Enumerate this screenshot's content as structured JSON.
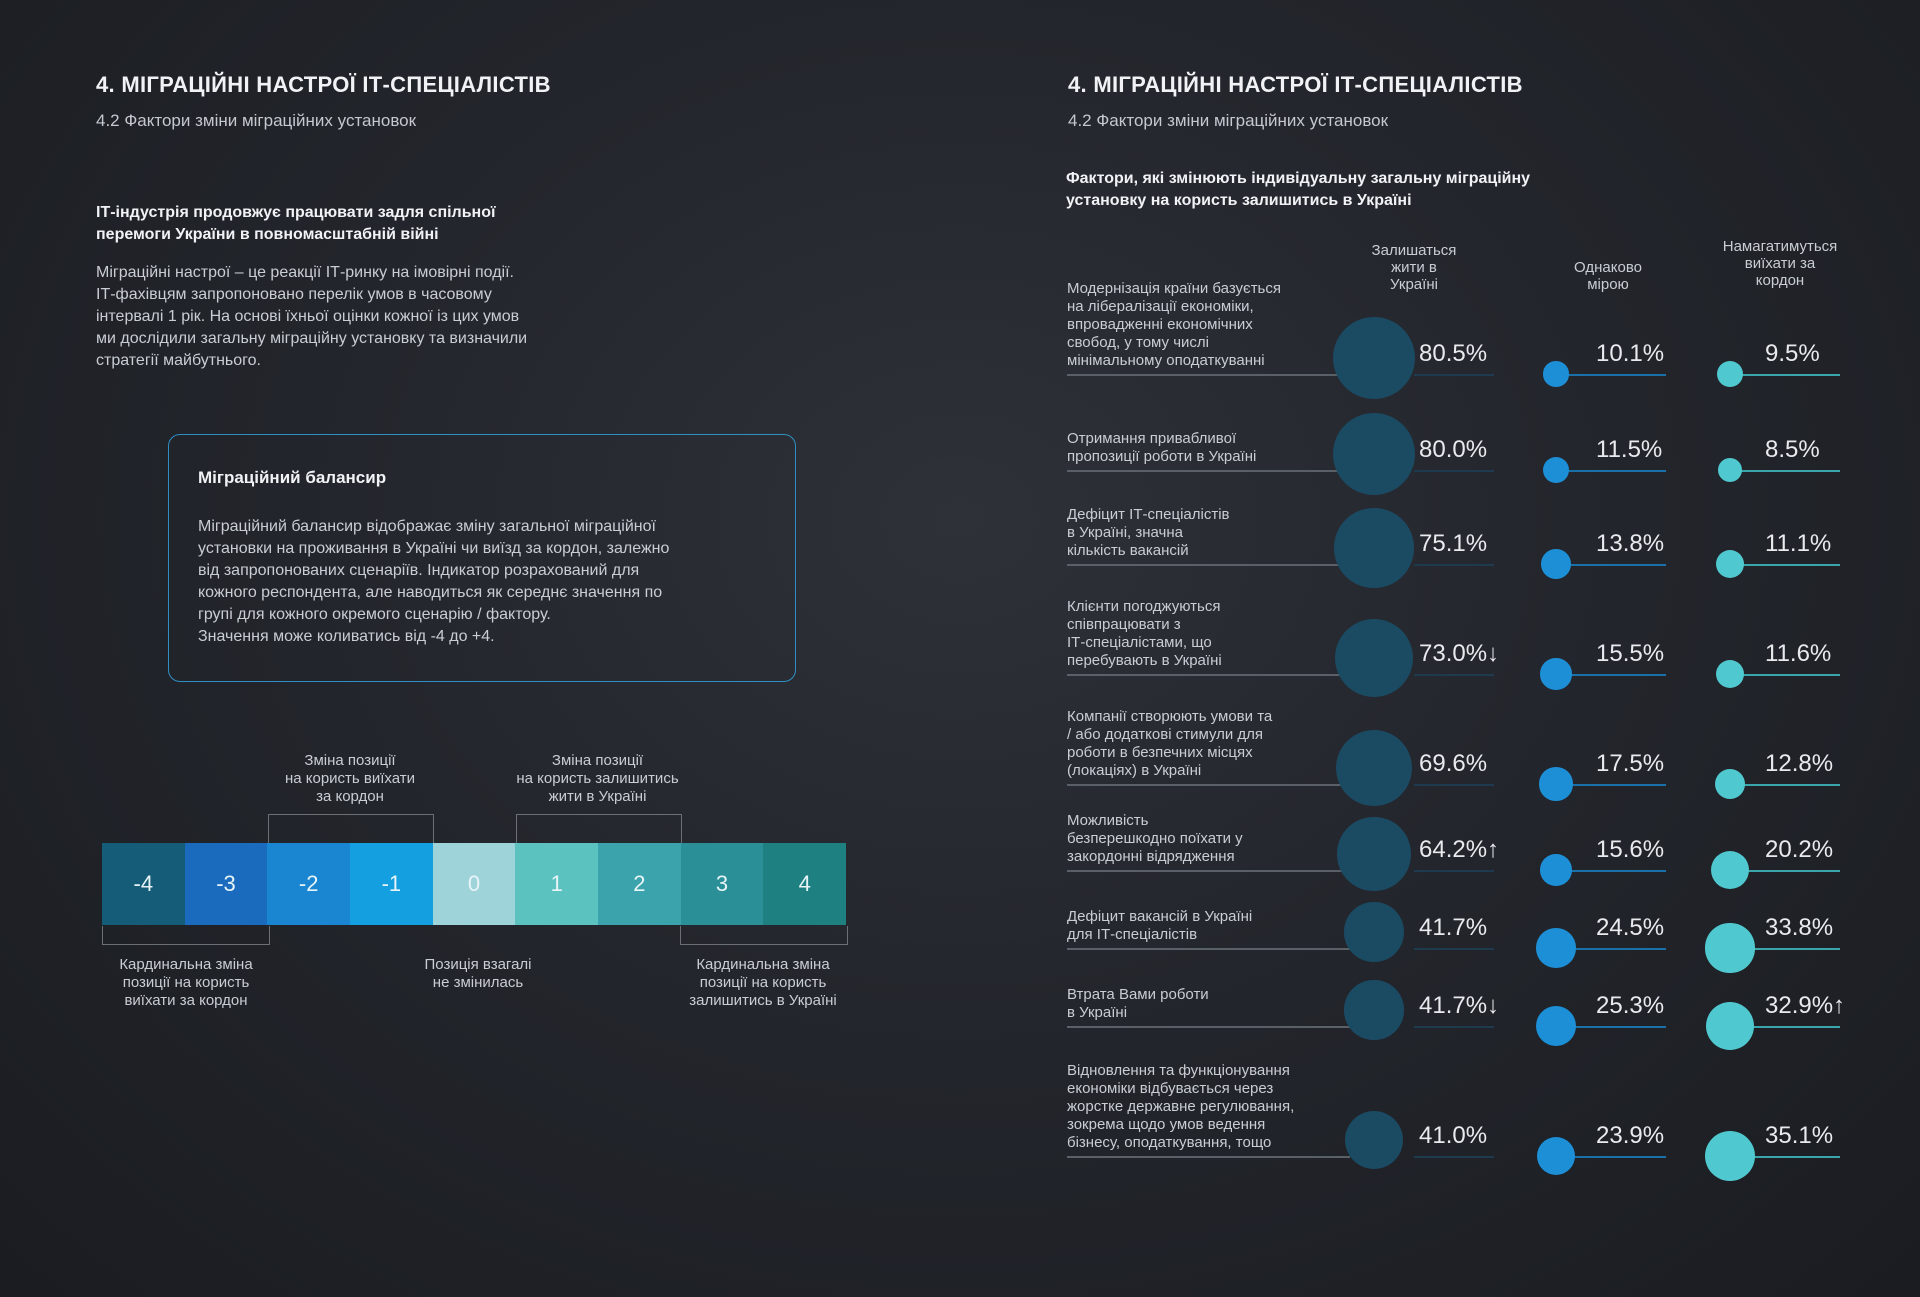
{
  "left": {
    "title": "4. МІГРАЦІЙНІ НАСТРОЇ ІТ-СПЕЦІАЛІСТІВ",
    "subtitle": "4.2 Фактори зміни міграційних установок",
    "lead_lines": [
      "ІТ-індустрія продовжує працювати задля спільної",
      "перемоги України в повномасштабній війні"
    ],
    "para_lines": [
      "Міграційні настрої – це реакції ІТ-ринку на імовірні події.",
      "ІТ-фахівцям запропоновано перелік умов в часовому",
      "інтервалі 1 рік. На основі їхньої оцінки кожної із цих умов",
      "ми дослідили загальну міграційну установку та визначили",
      "стратегії майбутнього."
    ],
    "box": {
      "title": "Міграційний балансир",
      "lines": [
        "Міграційний балансир відображає зміну загальної міграційної",
        "установки на проживання в Україні чи виїзд за кордон, залежно",
        "від запропонованих сценаріїв. Індикатор розрахований для",
        "кожного респондента, але наводиться як середнє значення по",
        "групі для кожного окремого сценарію / фактору.",
        "Значення може коливатись від -4 до +4."
      ]
    },
    "scale": {
      "cells": [
        "-4",
        "-3",
        "-2",
        "-1",
        "0",
        "1",
        "2",
        "3",
        "4"
      ],
      "colors": [
        "#145c78",
        "#1a6bbd",
        "#1a86d2",
        "#139fe0",
        "#9ed3d9",
        "#5cc2c0",
        "#3aa3ab",
        "#2a8f97",
        "#1f8082"
      ],
      "top_left_label": [
        "Зміна позиції",
        "на користь виїхати",
        "за кордон"
      ],
      "top_right_label": [
        "Зміна позиції",
        "на користь залишитись",
        "жити в Україні"
      ],
      "bottom_left_label": [
        "Кардинальна зміна",
        "позиції на користь",
        "виїхати за кордон"
      ],
      "bottom_center_label": [
        "Позиція взагалі",
        "не змінилась"
      ],
      "bottom_right_label": [
        "Кардинальна зміна",
        "позиції на користь",
        "залишитись в Україні"
      ]
    }
  },
  "right": {
    "title": "4. МІГРАЦІЙНІ НАСТРОЇ ІТ-СПЕЦІАЛІСТІВ",
    "subtitle": "4.2 Фактори зміни міграційних установок",
    "heading_lines": [
      "Фактори, які змінюють індивідуальну загальну міграційну",
      "установку на користь залишитись в Україні"
    ],
    "columns": [
      [
        "Залишаться",
        "жити в",
        "Україні"
      ],
      [
        "Однаково",
        "мірою"
      ],
      [
        "Намагатимуться",
        "виїхати за",
        "кордон"
      ]
    ],
    "colors": {
      "stay": "#1b4a63",
      "same": "#1d8fd6",
      "leave": "#4fc9cf"
    }
  },
  "chart_data": {
    "type": "table",
    "series": [
      {
        "name": "Залишаться жити в Україні",
        "values": [
          80.5,
          80.0,
          75.1,
          73.0,
          69.6,
          64.2,
          41.7,
          41.7,
          41.0
        ]
      },
      {
        "name": "Однаково мірою",
        "values": [
          10.1,
          11.5,
          13.8,
          15.5,
          17.5,
          15.6,
          24.5,
          25.3,
          23.9
        ]
      },
      {
        "name": "Намагатимуться виїхати за кордон",
        "values": [
          9.5,
          8.5,
          11.1,
          11.6,
          12.8,
          20.2,
          33.8,
          32.9,
          35.1
        ]
      }
    ],
    "rows": [
      {
        "label": [
          "Модернізація країни базується",
          "на лібералізації економіки,",
          "впровадженні економічних",
          "свобод, у тому числі",
          "мінімальному оподаткуванні"
        ],
        "stay": 80.5,
        "stay_text": "80.5%",
        "same": 10.1,
        "same_text": "10.1%",
        "leave": 9.5,
        "leave_text": "9.5%"
      },
      {
        "label": [
          "Отримання привабливої",
          "пропозиції роботи в Україні"
        ],
        "stay": 80.0,
        "stay_text": "80.0%",
        "same": 11.5,
        "same_text": "11.5%",
        "leave": 8.5,
        "leave_text": "8.5%"
      },
      {
        "label": [
          "Дефіцит ІТ-спеціалістів",
          "в Україні, значна",
          "кількість вакансій"
        ],
        "stay": 75.1,
        "stay_text": "75.1%",
        "same": 13.8,
        "same_text": "13.8%",
        "leave": 11.1,
        "leave_text": "11.1%"
      },
      {
        "label": [
          "Клієнти погоджуються",
          "співпрацювати з",
          "ІТ-спеціалістами, що",
          "перебувають в Україні"
        ],
        "stay": 73.0,
        "stay_text": "73.0%↓",
        "same": 15.5,
        "same_text": "15.5%",
        "leave": 11.6,
        "leave_text": "11.6%"
      },
      {
        "label": [
          "Компанії створюють умови та",
          "/ або додаткові стимули для",
          "роботи в безпечних місцях",
          "(локаціях) в Україні"
        ],
        "stay": 69.6,
        "stay_text": "69.6%",
        "same": 17.5,
        "same_text": "17.5%",
        "leave": 12.8,
        "leave_text": "12.8%"
      },
      {
        "label": [
          "Можливість",
          "безперешкодно поїхати у",
          "закордонні відрядження"
        ],
        "stay": 64.2,
        "stay_text": "64.2%↑",
        "same": 15.6,
        "same_text": "15.6%",
        "leave": 20.2,
        "leave_text": "20.2%"
      },
      {
        "label": [
          "Дефіцит вакансій в Україні",
          "для ІТ-спеціалістів"
        ],
        "stay": 41.7,
        "stay_text": "41.7%",
        "same": 24.5,
        "same_text": "24.5%",
        "leave": 33.8,
        "leave_text": "33.8%"
      },
      {
        "label": [
          "Втрата Вами роботи",
          "в Україні"
        ],
        "stay": 41.7,
        "stay_text": "41.7%↓",
        "same": 25.3,
        "same_text": "25.3%",
        "leave": 32.9,
        "leave_text": "32.9%↑"
      },
      {
        "label": [
          "Відновлення та функціонування",
          "економіки відбувається через",
          "жорстке державне регулювання,",
          "зокрема щодо умов ведення",
          "бізнесу, оподаткування, тощо"
        ],
        "stay": 41.0,
        "stay_text": "41.0%",
        "same": 23.9,
        "same_text": "23.9%",
        "leave": 35.1,
        "leave_text": "35.1%"
      }
    ]
  }
}
